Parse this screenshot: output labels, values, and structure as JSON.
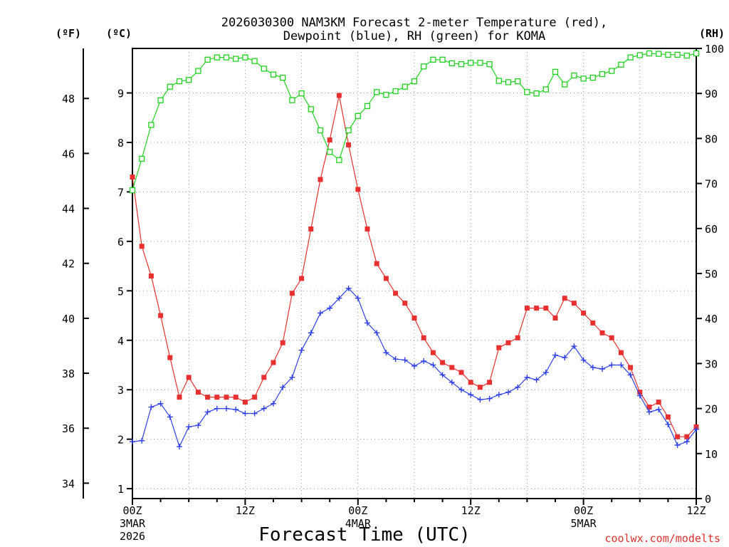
{
  "chart_data": {
    "type": "line",
    "title_line1": "2026030300 NAM3KM Forecast 2-meter Temperature (red),",
    "title_line2": "Dewpoint (blue), RH (green) for KOMA",
    "xlabel": "Forecast Time (UTC)",
    "credit": "coolwx.com/modelts",
    "units": {
      "fahrenheit": "(ºF)",
      "celsius": "(ºC)",
      "rh": "(RH)"
    },
    "x_ticks": [
      {
        "hour": 0,
        "l1": "00Z",
        "l2": "3MAR",
        "l3": "2026"
      },
      {
        "hour": 12,
        "l1": "12Z",
        "l2": "",
        "l3": ""
      },
      {
        "hour": 24,
        "l1": "00Z",
        "l2": "4MAR",
        "l3": ""
      },
      {
        "hour": 36,
        "l1": "12Z",
        "l2": "",
        "l3": ""
      },
      {
        "hour": 48,
        "l1": "00Z",
        "l2": "5MAR",
        "l3": ""
      },
      {
        "hour": 60,
        "l1": "12Z",
        "l2": "",
        "l3": ""
      }
    ],
    "xlim": [
      0,
      60
    ],
    "ylim_c": [
      0.8,
      9.9
    ],
    "ylim_rh": [
      0,
      100
    ],
    "celsius_ticks": [
      "1",
      "2",
      "3",
      "4",
      "5",
      "6",
      "7",
      "8",
      "9"
    ],
    "fahrenheit_ticks": [
      "34",
      "36",
      "38",
      "40",
      "42",
      "44",
      "46",
      "48"
    ],
    "rh_ticks": [
      "0",
      "10",
      "20",
      "30",
      "40",
      "50",
      "60",
      "70",
      "80",
      "90",
      "100"
    ],
    "grid": true,
    "hours": [
      0,
      1,
      2,
      3,
      4,
      5,
      6,
      7,
      8,
      9,
      10,
      11,
      12,
      13,
      14,
      15,
      16,
      17,
      18,
      19,
      20,
      21,
      22,
      23,
      24,
      25,
      26,
      27,
      28,
      29,
      30,
      31,
      32,
      33,
      34,
      35,
      36,
      37,
      38,
      39,
      40,
      41,
      42,
      43,
      44,
      45,
      46,
      47,
      48,
      49,
      50,
      51,
      52,
      53,
      54,
      55,
      56,
      57,
      58,
      59,
      60
    ],
    "series": [
      {
        "name": "Temperature",
        "unit": "C",
        "color": "#e83030",
        "marker": "square-filled",
        "values": [
          7.3,
          5.9,
          5.3,
          4.5,
          3.65,
          2.85,
          3.25,
          2.95,
          2.85,
          2.85,
          2.85,
          2.85,
          2.75,
          2.85,
          3.25,
          3.55,
          3.95,
          4.95,
          5.25,
          6.25,
          7.25,
          8.05,
          8.95,
          7.95,
          7.05,
          6.25,
          5.55,
          5.25,
          4.95,
          4.75,
          4.45,
          4.05,
          3.75,
          3.55,
          3.45,
          3.35,
          3.15,
          3.05,
          3.15,
          3.85,
          3.95,
          4.05,
          4.65,
          4.65,
          4.65,
          4.45,
          4.85,
          4.75,
          4.55,
          4.35,
          4.15,
          4.05,
          3.75,
          3.45,
          2.95,
          2.65,
          2.75,
          2.45,
          2.05,
          2.05,
          2.25
        ]
      },
      {
        "name": "Dewpoint",
        "unit": "C",
        "color": "#3040e8",
        "marker": "plus",
        "values": [
          1.95,
          1.97,
          2.65,
          2.72,
          2.45,
          1.85,
          2.25,
          2.28,
          2.55,
          2.62,
          2.62,
          2.6,
          2.52,
          2.52,
          2.62,
          2.72,
          3.05,
          3.25,
          3.8,
          4.15,
          4.55,
          4.65,
          4.85,
          5.05,
          4.85,
          4.35,
          4.15,
          3.75,
          3.62,
          3.6,
          3.48,
          3.58,
          3.5,
          3.3,
          3.15,
          3.0,
          2.9,
          2.8,
          2.82,
          2.9,
          2.95,
          3.05,
          3.25,
          3.2,
          3.35,
          3.7,
          3.65,
          3.88,
          3.6,
          3.45,
          3.42,
          3.5,
          3.5,
          3.3,
          2.88,
          2.55,
          2.6,
          2.3,
          1.88,
          1.95,
          2.2
        ]
      },
      {
        "name": "RH",
        "unit": "%",
        "color": "#20d020",
        "marker": "square-open",
        "values": [
          68.5,
          75.5,
          83,
          88.5,
          91.5,
          92.7,
          93,
          95,
          97.5,
          98,
          98,
          97.7,
          98,
          97.2,
          95.5,
          94.2,
          93.5,
          88.5,
          90,
          86.5,
          81.8,
          77,
          75.2,
          81.8,
          85,
          87.2,
          90.3,
          89.7,
          90.5,
          91.5,
          92.7,
          96,
          97.5,
          97.5,
          96.7,
          96.5,
          96.8,
          96.8,
          96.5,
          92.8,
          92.5,
          92.7,
          90.3,
          90,
          90.9,
          94.8,
          92,
          94,
          93.3,
          93.5,
          94.3,
          95,
          96.4,
          98,
          98.5,
          98.9,
          98.8,
          98.6,
          98.6,
          98.4,
          98.9
        ]
      }
    ]
  }
}
